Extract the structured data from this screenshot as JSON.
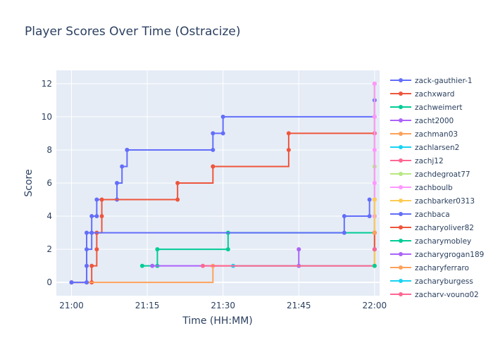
{
  "chart_data": {
    "type": "line",
    "line_shape": "step",
    "title": "Player Scores Over Time (Ostracize)",
    "xlabel": "Time (HH:MM)",
    "ylabel": "Score",
    "xlim": [
      "20:57",
      "22:01"
    ],
    "ylim": [
      -0.8,
      12.8
    ],
    "x_ticks": [
      "21:00",
      "21:15",
      "21:30",
      "21:45",
      "22:00"
    ],
    "y_ticks": [
      0,
      2,
      4,
      6,
      8,
      10,
      12
    ],
    "grid": true,
    "legend_position": "right",
    "plot_bgcolor": "#e5ecf6",
    "series": [
      {
        "name": "zack-gauthier-1",
        "color": "#636efa",
        "x": [
          "21:00",
          "21:03",
          "21:03",
          "21:03",
          "21:04",
          "21:04",
          "21:05",
          "21:05",
          "21:09",
          "21:09",
          "21:10",
          "21:11",
          "21:11",
          "21:28",
          "21:28",
          "21:30",
          "21:30",
          "22:00",
          "22:00"
        ],
        "y": [
          0,
          0,
          1,
          2,
          3,
          4,
          4,
          5,
          5,
          6,
          7,
          8,
          8,
          8,
          9,
          9,
          10,
          10,
          11
        ]
      },
      {
        "name": "zachxward",
        "color": "#ef553b",
        "x": [
          "21:00",
          "21:04",
          "21:04",
          "21:05",
          "21:05",
          "21:06",
          "21:06",
          "21:21",
          "21:21",
          "21:28",
          "21:28",
          "21:43",
          "21:43",
          "22:00",
          "22:00"
        ],
        "y": [
          0,
          0,
          1,
          2,
          3,
          4,
          5,
          5,
          6,
          7,
          7,
          8,
          9,
          9,
          12
        ]
      },
      {
        "name": "zachweimert",
        "color": "#00cc96",
        "x": [
          "21:14",
          "21:17",
          "21:17",
          "21:31",
          "21:31",
          "22:00",
          "22:00"
        ],
        "y": [
          1,
          1,
          2,
          2,
          3,
          3,
          4
        ]
      },
      {
        "name": "zacht2000",
        "color": "#ab63fa",
        "x": [
          "21:16",
          "21:45",
          "21:45"
        ],
        "y": [
          1,
          1,
          2
        ]
      },
      {
        "name": "zachman03",
        "color": "#ffa15a",
        "x": [
          "21:00",
          "21:28",
          "22:00"
        ],
        "y": [
          0,
          1,
          1
        ]
      },
      {
        "name": "zachlarsen2",
        "color": "#19d3f3",
        "x": [
          "21:32",
          "22:00"
        ],
        "y": [
          1,
          1
        ]
      },
      {
        "name": "zachj12",
        "color": "#ff6692",
        "x": [
          "21:26",
          "22:00",
          "22:00",
          "22:00",
          "22:00"
        ],
        "y": [
          1,
          1,
          3,
          5,
          9
        ]
      },
      {
        "name": "zachdegroat77",
        "color": "#b6e880",
        "x": [
          "22:00",
          "22:00",
          "22:00",
          "22:00",
          "22:00"
        ],
        "y": [
          1,
          4,
          7,
          10,
          12
        ]
      },
      {
        "name": "zachboulb",
        "color": "#ff97ff",
        "x": [
          "22:00",
          "22:00",
          "22:00",
          "22:00",
          "22:00",
          "22:00"
        ],
        "y": [
          2,
          4,
          6,
          8,
          10,
          12
        ]
      },
      {
        "name": "zachbarker0313",
        "color": "#fecb52",
        "x": [
          "22:00",
          "22:00"
        ],
        "y": [
          1,
          5
        ]
      },
      {
        "name": "zachbaca",
        "color": "#636efa",
        "x": [
          "21:00",
          "21:03",
          "21:03",
          "21:54",
          "21:54",
          "21:59",
          "21:59"
        ],
        "y": [
          0,
          0,
          3,
          3,
          4,
          4,
          5
        ]
      },
      {
        "name": "zacharyoliver82",
        "color": "#ef553b",
        "x": [
          "22:00",
          "22:00"
        ],
        "y": [
          2,
          3
        ]
      },
      {
        "name": "zacharymobley",
        "color": "#00cc96",
        "x": [
          "22:00"
        ],
        "y": [
          1
        ]
      },
      {
        "name": "zacharygrogan189",
        "color": "#ab63fa",
        "x": [
          "22:00"
        ],
        "y": [
          2
        ]
      },
      {
        "name": "zacharyferraro",
        "color": "#ffa15a",
        "x": [
          "22:00"
        ],
        "y": [
          3
        ]
      },
      {
        "name": "zacharyburgess",
        "color": "#19d3f3",
        "x": [
          "22:00"
        ],
        "y": [
          2
        ]
      },
      {
        "name": "zachary-young02",
        "color": "#ff6692",
        "x": [
          "22:00"
        ],
        "y": [
          2
        ]
      }
    ]
  }
}
